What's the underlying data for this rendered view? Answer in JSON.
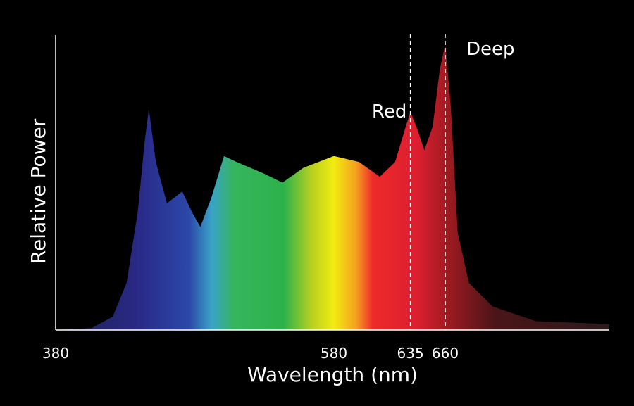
{
  "chart_data": {
    "type": "area",
    "x_label": "Wavelength (nm)",
    "y_label": "Relative Power",
    "x": [
      380,
      406,
      421,
      431,
      439,
      444,
      447,
      452,
      460,
      471,
      478,
      484,
      492,
      501,
      510,
      520,
      530,
      543,
      558,
      580,
      598,
      613,
      624,
      631,
      635,
      640,
      645,
      651,
      656,
      660,
      664,
      669,
      677,
      694,
      725,
      778
    ],
    "values": [
      0,
      0.7,
      4.5,
      16,
      40,
      64,
      75,
      57,
      43,
      47,
      40,
      35,
      45,
      59,
      57,
      55,
      53,
      50,
      55,
      59,
      57,
      52,
      57,
      68,
      74,
      68,
      61,
      69,
      88,
      97,
      76,
      33,
      16,
      8,
      3,
      2
    ],
    "xlim": [
      380,
      780
    ],
    "ylim": [
      0,
      100
    ],
    "xticks": [
      380,
      580,
      635,
      660
    ],
    "markers": [
      {
        "x": 635,
        "label": "Red"
      },
      {
        "x": 660,
        "label": "Deep"
      }
    ]
  }
}
